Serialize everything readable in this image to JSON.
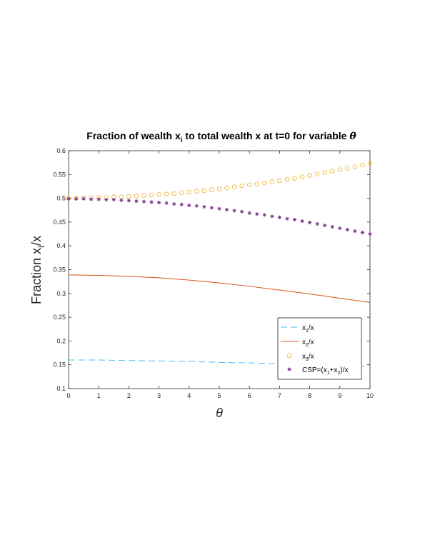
{
  "chart_data": {
    "type": "line",
    "title_prefix": "Fraction of wealth x",
    "title_sub": "i",
    "title_suffix": " to total wealth x at t=0 for variable ",
    "title_theta": "θ",
    "xlabel": "θ",
    "ylabel_prefix": "Fraction x",
    "ylabel_sub": "i",
    "ylabel_suffix": "/x",
    "xlim": [
      0,
      10
    ],
    "ylim": [
      0.1,
      0.6
    ],
    "xticks": [
      0,
      1,
      2,
      3,
      4,
      5,
      6,
      7,
      8,
      9,
      10
    ],
    "xtick_labels": [
      "0",
      "1",
      "2",
      "3",
      "4",
      "5",
      "6",
      "7",
      "8",
      "9",
      "10"
    ],
    "yticks": [
      0.1,
      0.15,
      0.2,
      0.25,
      0.3,
      0.35,
      0.4,
      0.45,
      0.5,
      0.55,
      0.6
    ],
    "ytick_labels": [
      "0.1",
      "0.15",
      "0.2",
      "0.25",
      "0.3",
      "0.35",
      "0.4",
      "0.45",
      "0.5",
      "0.55",
      "0.6"
    ],
    "grid": false,
    "legend_position": "bottom-right",
    "series": [
      {
        "key": "x1",
        "legend_prefix": "x",
        "legend_sub": "1",
        "legend_suffix": "/x",
        "style": "dashed",
        "color": "#4DBEEE",
        "x": [
          0,
          1,
          2,
          3,
          4,
          5,
          6,
          7,
          8,
          9,
          10
        ],
        "y": [
          0.16,
          0.16,
          0.159,
          0.158,
          0.157,
          0.155,
          0.154,
          0.152,
          0.15,
          0.148,
          0.146
        ]
      },
      {
        "key": "x2",
        "legend_prefix": "x",
        "legend_sub": "2",
        "legend_suffix": "/x",
        "style": "solid",
        "color": "#D95319",
        "x": [
          0,
          1,
          2,
          3,
          4,
          5,
          6,
          7,
          8,
          9,
          10
        ],
        "y": [
          0.339,
          0.338,
          0.336,
          0.333,
          0.328,
          0.322,
          0.315,
          0.307,
          0.299,
          0.29,
          0.281
        ]
      },
      {
        "key": "x3",
        "legend_prefix": "x",
        "legend_sub": "3",
        "legend_suffix": "/x",
        "style": "circle",
        "color": "#EDB120",
        "x": [
          0,
          0.25,
          0.5,
          0.75,
          1,
          1.25,
          1.5,
          1.75,
          2,
          2.25,
          2.5,
          2.75,
          3,
          3.25,
          3.5,
          3.75,
          4,
          4.25,
          4.5,
          4.75,
          5,
          5.25,
          5.5,
          5.75,
          6,
          6.25,
          6.5,
          6.75,
          7,
          7.25,
          7.5,
          7.75,
          8,
          8.25,
          8.5,
          8.75,
          9,
          9.25,
          9.5,
          9.75,
          10
        ],
        "y": [
          0.5,
          0.5,
          0.501,
          0.501,
          0.502,
          0.502,
          0.503,
          0.503,
          0.504,
          0.505,
          0.506,
          0.507,
          0.508,
          0.509,
          0.51,
          0.512,
          0.513,
          0.515,
          0.516,
          0.518,
          0.52,
          0.522,
          0.524,
          0.526,
          0.528,
          0.53,
          0.532,
          0.535,
          0.537,
          0.54,
          0.542,
          0.545,
          0.548,
          0.551,
          0.554,
          0.557,
          0.56,
          0.563,
          0.566,
          0.57,
          0.574
        ]
      },
      {
        "key": "csp",
        "legend_text": "CSP=(x",
        "legend_sub": "1",
        "legend_mid": "+x",
        "legend_sub2": "2",
        "legend_suffix": ")/x",
        "style": "star",
        "color": "#7E2F8E",
        "x": [
          0,
          0.25,
          0.5,
          0.75,
          1,
          1.25,
          1.5,
          1.75,
          2,
          2.25,
          2.5,
          2.75,
          3,
          3.25,
          3.5,
          3.75,
          4,
          4.25,
          4.5,
          4.75,
          5,
          5.25,
          5.5,
          5.75,
          6,
          6.25,
          6.5,
          6.75,
          7,
          7.25,
          7.5,
          7.75,
          8,
          8.25,
          8.5,
          8.75,
          9,
          9.25,
          9.5,
          9.75,
          10
        ],
        "y": [
          0.499,
          0.499,
          0.499,
          0.498,
          0.498,
          0.497,
          0.497,
          0.496,
          0.495,
          0.494,
          0.493,
          0.492,
          0.491,
          0.49,
          0.488,
          0.487,
          0.485,
          0.484,
          0.482,
          0.48,
          0.478,
          0.476,
          0.474,
          0.472,
          0.469,
          0.467,
          0.465,
          0.462,
          0.46,
          0.457,
          0.455,
          0.452,
          0.449,
          0.446,
          0.443,
          0.44,
          0.437,
          0.434,
          0.431,
          0.428,
          0.425
        ]
      }
    ]
  }
}
